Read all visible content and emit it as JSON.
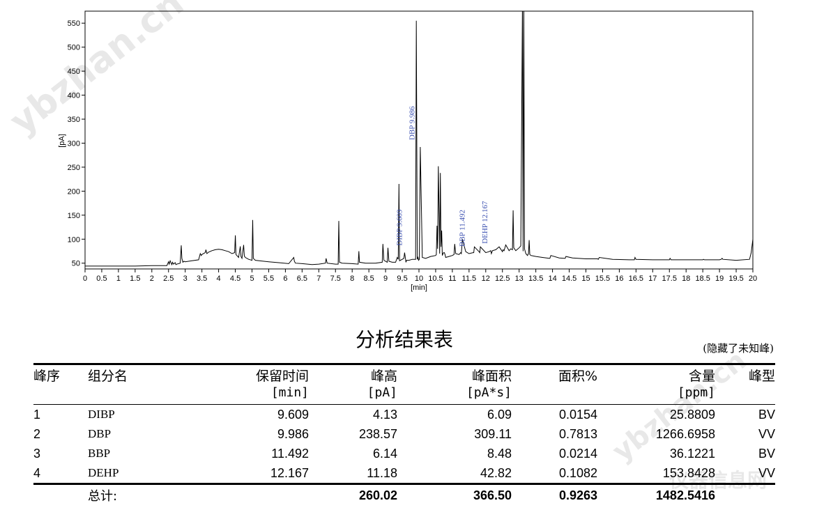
{
  "chart_data": {
    "type": "line",
    "title": "",
    "xlabel": "[min]",
    "ylabel": "[pA]",
    "xlim": [
      0,
      20
    ],
    "ylim": [
      38,
      575
    ],
    "grid": false,
    "x_ticks": [
      "0",
      "0.5",
      "1",
      "1.5",
      "2",
      "2.5",
      "3",
      "3.5",
      "4",
      "4.5",
      "5",
      "5.5",
      "6",
      "6.5",
      "7",
      "7.5",
      "8",
      "8.5",
      "9",
      "9.5",
      "10",
      "10.5",
      "11",
      "11.5",
      "12",
      "12.5",
      "13",
      "13.5",
      "14",
      "14.5",
      "15",
      "15.5",
      "16",
      "16.5",
      "17",
      "17.5",
      "18",
      "18.5",
      "19",
      "19.5",
      "20"
    ],
    "y_ticks": [
      50,
      100,
      150,
      200,
      250,
      300,
      350,
      400,
      450,
      500,
      550
    ],
    "series": [
      {
        "x": [
          0,
          1.5,
          2.0,
          2.45,
          2.5,
          2.52,
          2.55,
          2.6,
          2.62,
          2.65,
          2.7,
          2.72,
          2.75,
          2.85,
          2.88,
          2.9,
          2.93,
          2.96,
          3.0,
          3.2,
          3.4,
          3.45,
          3.48,
          3.5,
          3.6,
          3.62,
          3.65,
          3.7,
          3.8,
          3.9,
          4.0,
          4.1,
          4.2,
          4.3,
          4.4,
          4.48,
          4.5,
          4.52,
          4.6,
          4.65,
          4.67,
          4.7,
          4.75,
          4.77,
          4.8,
          4.9,
          5.0,
          5.02,
          5.04,
          5.1,
          5.5,
          5.8,
          6.1,
          6.25,
          6.27,
          6.3,
          6.5,
          6.8,
          7.0,
          7.2,
          7.22,
          7.25,
          7.5,
          7.58,
          7.6,
          7.62,
          7.7,
          8.0,
          8.18,
          8.2,
          8.22,
          8.4,
          8.7,
          8.9,
          8.92,
          8.95,
          9.05,
          9.07,
          9.1,
          9.2,
          9.3,
          9.35,
          9.38,
          9.4,
          9.42,
          9.5,
          9.55,
          9.57,
          9.6,
          9.61,
          9.63,
          9.7,
          9.8,
          9.88,
          9.9,
          9.92,
          9.95,
          9.97,
          9.99,
          10.01,
          10.04,
          10.1,
          10.2,
          10.35,
          10.5,
          10.52,
          10.54,
          10.56,
          10.58,
          10.62,
          10.64,
          10.66,
          10.68,
          10.7,
          10.72,
          10.74,
          10.76,
          10.78,
          10.8,
          10.9,
          11.0,
          11.05,
          11.07,
          11.1,
          11.2,
          11.25,
          11.27,
          11.3,
          11.4,
          11.5,
          11.62,
          11.64,
          11.66,
          11.8,
          11.82,
          11.84,
          12.0,
          12.1,
          12.15,
          12.17,
          12.2,
          12.3,
          12.4,
          12.5,
          12.52,
          12.55,
          12.6,
          12.7,
          12.75,
          12.8,
          12.82,
          12.84,
          12.9,
          13.0,
          13.05,
          13.1,
          13.12,
          13.14,
          13.16,
          13.2,
          13.25,
          13.28,
          13.3,
          13.32,
          13.35,
          13.5,
          13.7,
          13.9,
          13.92,
          13.95,
          14.2,
          14.35,
          14.38,
          14.4,
          14.6,
          15.0,
          15.35,
          15.37,
          15.4,
          15.8,
          16.3,
          16.45,
          16.47,
          16.5,
          17.0,
          17.5,
          17.52,
          17.55,
          18.0,
          18.5,
          18.52,
          18.55,
          19.0,
          19.05,
          19.08,
          19.1,
          19.5,
          19.9,
          19.95,
          20.0
        ],
        "y": [
          44,
          44,
          45,
          45,
          53,
          48,
          55,
          47,
          52,
          48,
          51,
          47,
          48,
          50,
          87,
          60,
          52,
          54,
          53,
          55,
          57,
          70,
          66,
          68,
          72,
          78,
          70,
          73,
          76,
          78,
          79,
          78,
          76,
          74,
          70,
          72,
          108,
          68,
          62,
          85,
          64,
          60,
          88,
          65,
          62,
          58,
          56,
          140,
          60,
          56,
          53,
          51,
          49,
          62,
          54,
          50,
          49,
          47,
          48,
          50,
          60,
          50,
          48,
          48,
          138,
          52,
          50,
          49,
          48,
          75,
          52,
          50,
          50,
          52,
          90,
          56,
          52,
          82,
          54,
          52,
          52,
          62,
          58,
          215,
          55,
          58,
          60,
          72,
          58,
          52,
          56,
          56,
          58,
          58,
          58,
          555,
          58,
          62,
          56,
          58,
          292,
          62,
          60,
          64,
          66,
          68,
          128,
          80,
          252,
          70,
          238,
          84,
          118,
          66,
          70,
          72,
          72,
          68,
          62,
          64,
          66,
          68,
          90,
          70,
          68,
          72,
          70,
          100,
          74,
          70,
          72,
          72,
          84,
          74,
          72,
          84,
          72,
          74,
          76,
          70,
          76,
          78,
          84,
          74,
          78,
          76,
          88,
          76,
          80,
          78,
          160,
          82,
          76,
          82,
          86,
          600,
          75,
          600,
          80,
          70,
          66,
          70,
          98,
          68,
          66,
          64,
          62,
          60,
          60,
          66,
          61,
          60,
          60,
          64,
          61,
          59,
          59,
          58,
          62,
          58,
          57,
          57,
          62,
          58,
          57,
          57,
          60,
          57,
          57,
          57,
          58,
          57,
          57,
          58,
          60,
          58,
          56,
          58,
          72,
          100
        ]
      }
    ],
    "annotations": [
      {
        "text": "DIBP  9.609",
        "x": 9.609,
        "y": 4.13
      },
      {
        "text": "DBP  9.986",
        "x": 9.986,
        "y": 238.57
      },
      {
        "text": "BBP  11.492",
        "x": 11.492,
        "y": 6.14
      },
      {
        "text": "DEHP  12.167",
        "x": 12.167,
        "y": 11.18
      }
    ]
  },
  "report": {
    "title": "分析结果表",
    "note": "(隐藏了未知峰)",
    "headers": {
      "peak_no": "峰序",
      "component": "组分名",
      "rt_label": "保留时间",
      "rt_unit": "[min]",
      "height_label": "峰高",
      "height_unit": "[pA]",
      "area_label": "峰面积",
      "area_unit": "[pA*s]",
      "area_pct": "面积%",
      "content_label": "含量",
      "content_unit": "[ppm]",
      "peak_type": "峰型"
    },
    "rows": [
      {
        "no": "1",
        "name": "DIBP",
        "rt": "9.609",
        "height": "4.13",
        "area": "6.09",
        "pct": "0.0154",
        "content": "25.8809",
        "type": "BV"
      },
      {
        "no": "2",
        "name": "DBP",
        "rt": "9.986",
        "height": "238.57",
        "area": "309.11",
        "pct": "0.7813",
        "content": "1266.6958",
        "type": "VV"
      },
      {
        "no": "3",
        "name": "BBP",
        "rt": "11.492",
        "height": "6.14",
        "area": "8.48",
        "pct": "0.0214",
        "content": "36.1221",
        "type": "BV"
      },
      {
        "no": "4",
        "name": "DEHP",
        "rt": "12.167",
        "height": "11.18",
        "area": "42.82",
        "pct": "0.1082",
        "content": "153.8428",
        "type": "VV"
      }
    ],
    "total": {
      "label": "总计:",
      "height": "260.02",
      "area": "366.50",
      "pct": "0.9263",
      "content": "1482.5416"
    }
  },
  "watermarks": {
    "left": "ybzhan.cn",
    "right": "ybzhan.cn",
    "bottom": "仪器信息网"
  }
}
